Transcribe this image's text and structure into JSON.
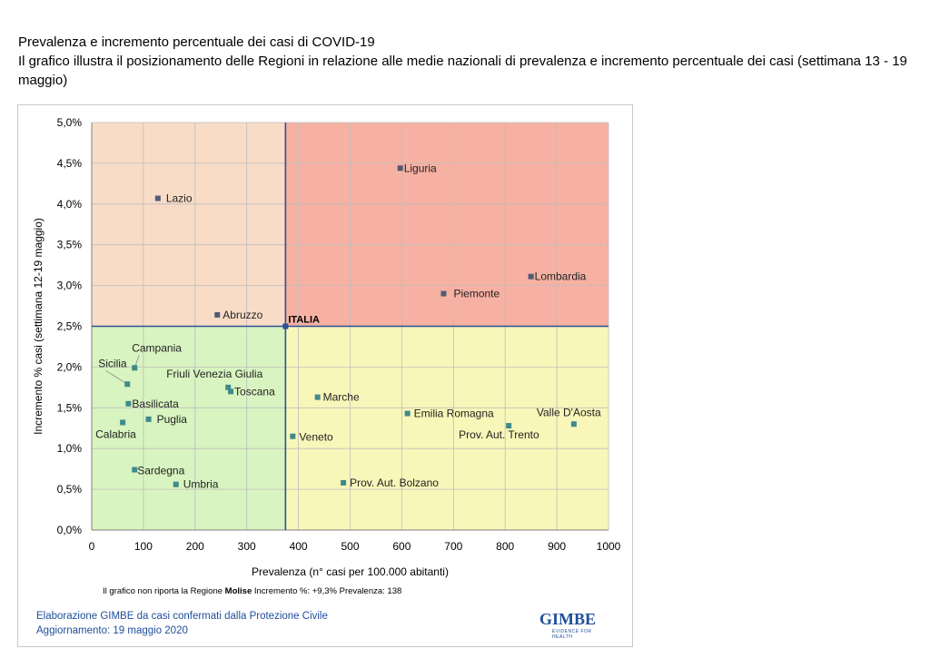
{
  "header": {
    "title": "Prevalenza e incremento percentuale dei casi di COVID-19",
    "subtitle": "Il grafico illustra il posizionamento delle Regioni in relazione alle medie nazionali di prevalenza e incremento percentuale dei casi (settimana 13 - 19 maggio)"
  },
  "chart_data": {
    "type": "scatter",
    "xlabel": "Prevalenza  (n° casi per 100.000 abitanti)",
    "ylabel": "Incremento %  casi (settimana 12-19 maggio)",
    "xlim": [
      0,
      1000
    ],
    "ylim": [
      0,
      5
    ],
    "x_ticks": [
      "0",
      "100",
      "200",
      "300",
      "400",
      "500",
      "600",
      "700",
      "800",
      "900",
      "1000"
    ],
    "y_ticks": [
      "0,0%",
      "0,5%",
      "1,0%",
      "1,5%",
      "2,0%",
      "2,5%",
      "3,0%",
      "3,5%",
      "4,0%",
      "4,5%",
      "5,0%"
    ],
    "grid": true,
    "reference": {
      "label": "ITALIA",
      "x": 375,
      "y": 2.5
    },
    "quadrant_colors": {
      "top_left": "#f8dcc6",
      "top_right": "#f7b1a3",
      "bottom_left": "#d8f4c0",
      "bottom_right": "#f8f7b9"
    },
    "points": [
      {
        "label": "Liguria",
        "x": 597,
        "y": 4.44,
        "group": "top_right"
      },
      {
        "label": "Lazio",
        "x": 128,
        "y": 4.07,
        "group": "top_left"
      },
      {
        "label": "Lombardia",
        "x": 850,
        "y": 3.11,
        "group": "top_right"
      },
      {
        "label": "Piemonte",
        "x": 681,
        "y": 2.9,
        "group": "top_right"
      },
      {
        "label": "Abruzzo",
        "x": 243,
        "y": 2.64,
        "group": "top_left"
      },
      {
        "label": "Campania",
        "x": 83,
        "y": 1.99,
        "group": "bottom_left"
      },
      {
        "label": "Sicilia",
        "x": 69,
        "y": 1.79,
        "group": "bottom_left"
      },
      {
        "label": "Friuli Venezia Giulia",
        "x": 264,
        "y": 1.75,
        "group": "bottom_left"
      },
      {
        "label": "Toscana",
        "x": 269,
        "y": 1.7,
        "group": "bottom_left"
      },
      {
        "label": "Marche",
        "x": 437,
        "y": 1.63,
        "group": "bottom_right"
      },
      {
        "label": "Basilicata",
        "x": 71,
        "y": 1.55,
        "group": "bottom_left"
      },
      {
        "label": "Emilia Romagna",
        "x": 611,
        "y": 1.43,
        "group": "bottom_right"
      },
      {
        "label": "Puglia",
        "x": 110,
        "y": 1.36,
        "group": "bottom_left"
      },
      {
        "label": "Calabria",
        "x": 60,
        "y": 1.32,
        "group": "bottom_left"
      },
      {
        "label": "Valle D'Aosta",
        "x": 933,
        "y": 1.3,
        "group": "bottom_right"
      },
      {
        "label": "Prov. Aut. Trento",
        "x": 807,
        "y": 1.28,
        "group": "bottom_right"
      },
      {
        "label": "Veneto",
        "x": 389,
        "y": 1.15,
        "group": "bottom_right"
      },
      {
        "label": "Sardegna",
        "x": 83,
        "y": 0.74,
        "group": "bottom_left"
      },
      {
        "label": "Prov. Aut. Bolzano",
        "x": 487,
        "y": 0.58,
        "group": "bottom_right"
      },
      {
        "label": "Umbria",
        "x": 163,
        "y": 0.56,
        "group": "bottom_left"
      }
    ]
  },
  "note": {
    "prefix": "Il grafico non riporta la Regione ",
    "region": "Molise",
    "suffix": " Incremento %: +9,3% Prevalenza: 138"
  },
  "footer": {
    "line1": "Elaborazione GIMBE da casi confermati dalla Protezione Civile",
    "line2": "Aggiornamento: 19 maggio 2020"
  },
  "logo": {
    "name": "GIMBE",
    "tagline": "EVIDENCE FOR HEALTH"
  }
}
